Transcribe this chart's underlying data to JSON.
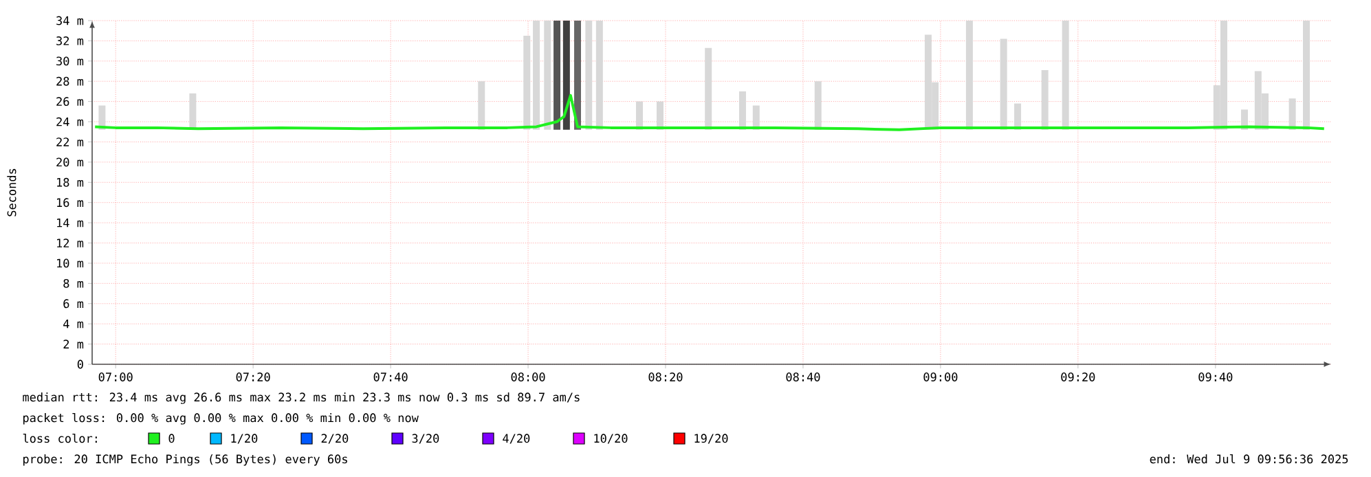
{
  "chart_data": {
    "type": "line",
    "ylabel": "Seconds",
    "legend_title": "loss color:",
    "legend": "bottom left",
    "grid": true,
    "marker": "none",
    "line_style": "solid",
    "xlim": [
      6.943,
      9.947
    ],
    "ylim": [
      0,
      34
    ],
    "xticks": [
      {
        "value": 7.0,
        "label": "07:00"
      },
      {
        "value": 7.3333,
        "label": "07:20"
      },
      {
        "value": 7.6667,
        "label": "07:40"
      },
      {
        "value": 8.0,
        "label": "08:00"
      },
      {
        "value": 8.3333,
        "label": "08:20"
      },
      {
        "value": 8.6667,
        "label": "08:40"
      },
      {
        "value": 9.0,
        "label": "09:00"
      },
      {
        "value": 9.3333,
        "label": "09:20"
      },
      {
        "value": 9.6667,
        "label": "09:40"
      }
    ],
    "yticks": [
      0,
      {
        "value": 2,
        "label": "2 m"
      },
      {
        "value": 4,
        "label": "4 m"
      },
      {
        "value": 6,
        "label": "6 m"
      },
      {
        "value": 8,
        "label": "8 m"
      },
      {
        "value": 10,
        "label": "10 m"
      },
      {
        "value": 12,
        "label": "12 m"
      },
      {
        "value": 14,
        "label": "14 m"
      },
      {
        "value": 16,
        "label": "16 m"
      },
      {
        "value": 18,
        "label": "18 m"
      },
      {
        "value": 20,
        "label": "20 m"
      },
      {
        "value": 22,
        "label": "22 m"
      },
      {
        "value": 24,
        "label": "24 m"
      },
      {
        "value": 26,
        "label": "26 m"
      },
      {
        "value": 28,
        "label": "28 m"
      },
      {
        "value": 30,
        "label": "30 m"
      },
      {
        "value": 32,
        "label": "32 m"
      },
      {
        "value": 34,
        "label": "34 m"
      }
    ],
    "series": [
      {
        "type": "bar",
        "x": [
          6.967,
          7.187,
          7.887,
          7.997,
          8.02,
          8.047,
          8.07,
          8.093,
          8.12,
          8.147,
          8.173,
          8.27,
          8.32,
          8.437,
          8.52,
          8.553,
          8.703,
          8.97,
          8.987,
          9.07,
          9.153,
          9.187,
          9.253,
          9.303,
          9.67,
          9.687,
          9.737,
          9.77,
          9.787,
          9.853,
          9.887
        ],
        "base": [
          23.2,
          23.2,
          23.2,
          23.2,
          23.2,
          23.2,
          23.2,
          23.2,
          23.2,
          23.2,
          23.2,
          23.2,
          23.2,
          23.2,
          23.2,
          23.2,
          23.2,
          23.2,
          23.2,
          23.2,
          23.2,
          23.2,
          23.2,
          23.2,
          23.2,
          23.2,
          23.2,
          23.2,
          23.2,
          23.2,
          23.2
        ],
        "values": [
          2.4,
          3.6,
          4.8,
          9.3,
          10.8,
          10.8,
          10.8,
          10.8,
          10.8,
          10.8,
          10.8,
          2.8,
          2.8,
          8.1,
          3.8,
          2.4,
          4.8,
          9.4,
          4.7,
          10.8,
          9,
          2.6,
          5.9,
          10.8,
          4.4,
          10.8,
          2,
          5.8,
          3.6,
          3.1,
          10.8
        ],
        "colors": [
          "#d8d8d8",
          "#d8d8d8",
          "#d8d8d8",
          "#d8d8d8",
          "#d8d8d8",
          "#d8d8d8",
          "#555555",
          "#404040",
          "#666666",
          "#d8d8d8",
          "#d8d8d8",
          "#d8d8d8",
          "#d8d8d8",
          "#d8d8d8",
          "#d8d8d8",
          "#d8d8d8",
          "#d8d8d8",
          "#d8d8d8",
          "#d8d8d8",
          "#d8d8d8",
          "#d8d8d8",
          "#d8d8d8",
          "#d8d8d8",
          "#d8d8d8",
          "#d8d8d8",
          "#d8d8d8",
          "#d8d8d8",
          "#d8d8d8",
          "#d8d8d8",
          "#d8d8d8",
          "#d8d8d8"
        ]
      },
      {
        "name": "0",
        "color": "#20f020",
        "x": [
          6.95,
          7.0,
          7.1,
          7.2,
          7.4,
          7.6,
          7.8,
          7.95,
          8.02,
          8.07,
          8.087,
          8.103,
          8.12,
          8.2,
          8.4,
          8.6,
          8.8,
          8.9,
          9.0,
          9.2,
          9.4,
          9.6,
          9.75,
          9.89,
          9.93
        ],
        "values": [
          23.5,
          23.4,
          23.4,
          23.3,
          23.4,
          23.3,
          23.4,
          23.4,
          23.5,
          24.0,
          24.5,
          26.6,
          23.5,
          23.4,
          23.4,
          23.4,
          23.3,
          23.2,
          23.4,
          23.4,
          23.4,
          23.4,
          23.5,
          23.4,
          23.3
        ]
      },
      {
        "name": "1/20",
        "color": "#00b8ff"
      },
      {
        "name": "2/20",
        "color": "#0059ff"
      },
      {
        "name": "3/20",
        "color": "#5e00ff"
      },
      {
        "name": "4/20",
        "color": "#7e00ff"
      },
      {
        "name": "10/20",
        "color": "#dd00ff"
      },
      {
        "name": "19/20",
        "color": "#ff0000"
      }
    ],
    "annotations": [
      "median rtt: 23.4 ms avg 26.6 ms max 23.2 ms min 23.3 ms now 0.3 ms sd 89.7 am/s",
      "packet loss: 0.00 % avg 0.00 % max 0.00 % min 0.00 % now",
      "probe: 20 ICMP Echo Pings (56 Bytes) every 60s",
      "end: Wed Jul 9 09:56:36 2025"
    ]
  }
}
